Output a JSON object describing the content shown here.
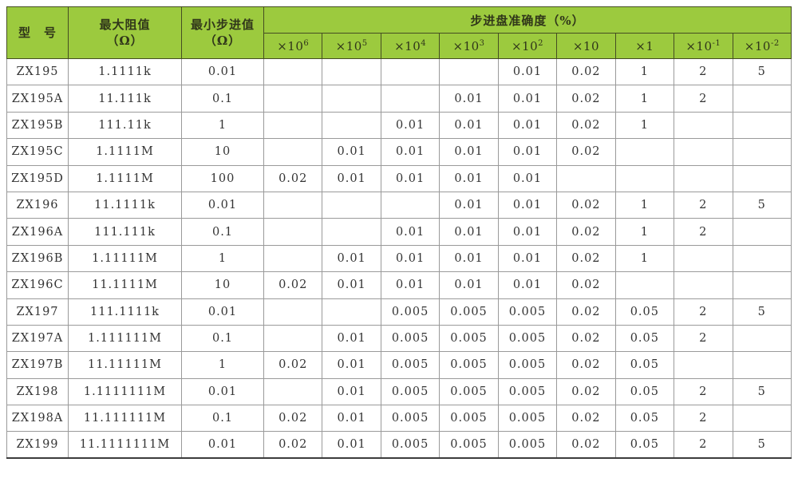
{
  "colors": {
    "header_bg": "#9cca3e",
    "header_border": "#454d22",
    "header_text": "#30361a",
    "grid_border": "#9a9a9a",
    "outer_border": "#3c3c3c",
    "cell_text": "#343434",
    "page_bg": "#ffffff"
  },
  "table": {
    "header": {
      "model": "型　号",
      "max_resistance": [
        "最大阻值",
        "（Ω）"
      ],
      "min_step": [
        "最小步进值",
        "（Ω）"
      ],
      "accuracy_group": "步进盘准确度（%）",
      "accuracy_columns": [
        {
          "base": "×10",
          "exp": "6"
        },
        {
          "base": "×10",
          "exp": "5"
        },
        {
          "base": "×10",
          "exp": "4"
        },
        {
          "base": "×10",
          "exp": "3"
        },
        {
          "base": "×10",
          "exp": "2"
        },
        {
          "base": "×10",
          "exp": ""
        },
        {
          "base": "×1",
          "exp": ""
        },
        {
          "base": "×10",
          "exp": "-1"
        },
        {
          "base": "×10",
          "exp": "-2"
        }
      ]
    },
    "rows": [
      {
        "model": "ZX195",
        "max": "1.1111k",
        "min_step": "0.01",
        "acc": [
          "",
          "",
          "",
          "",
          "0.01",
          "0.02",
          "1",
          "2",
          "5"
        ]
      },
      {
        "model": "ZX195A",
        "max": "11.111k",
        "min_step": "0.1",
        "acc": [
          "",
          "",
          "",
          "0.01",
          "0.01",
          "0.02",
          "1",
          "2",
          ""
        ]
      },
      {
        "model": "ZX195B",
        "max": "111.11k",
        "min_step": "1",
        "acc": [
          "",
          "",
          "0.01",
          "0.01",
          "0.01",
          "0.02",
          "1",
          "",
          ""
        ]
      },
      {
        "model": "ZX195C",
        "max": "1.1111M",
        "min_step": "10",
        "acc": [
          "",
          "0.01",
          "0.01",
          "0.01",
          "0.01",
          "0.02",
          "",
          "",
          ""
        ]
      },
      {
        "model": "ZX195D",
        "max": "1.1111M",
        "min_step": "100",
        "acc": [
          "0.02",
          "0.01",
          "0.01",
          "0.01",
          "0.01",
          "",
          "",
          "",
          ""
        ]
      },
      {
        "model": "ZX196",
        "max": "11.1111k",
        "min_step": "0.01",
        "acc": [
          "",
          "",
          "",
          "0.01",
          "0.01",
          "0.02",
          "1",
          "2",
          "5"
        ]
      },
      {
        "model": "ZX196A",
        "max": "111.111k",
        "min_step": "0.1",
        "acc": [
          "",
          "",
          "0.01",
          "0.01",
          "0.01",
          "0.02",
          "1",
          "2",
          ""
        ]
      },
      {
        "model": "ZX196B",
        "max": "1.11111M",
        "min_step": "1",
        "acc": [
          "",
          "0.01",
          "0.01",
          "0.01",
          "0.01",
          "0.02",
          "1",
          "",
          ""
        ]
      },
      {
        "model": "ZX196C",
        "max": "11.1111M",
        "min_step": "10",
        "acc": [
          "0.02",
          "0.01",
          "0.01",
          "0.01",
          "0.01",
          "0.02",
          "",
          "",
          ""
        ]
      },
      {
        "model": "ZX197",
        "max": "111.1111k",
        "min_step": "0.01",
        "acc": [
          "",
          "",
          "0.005",
          "0.005",
          "0.005",
          "0.02",
          "0.05",
          "2",
          "5"
        ]
      },
      {
        "model": "ZX197A",
        "max": "1.111111M",
        "min_step": "0.1",
        "acc": [
          "",
          "0.01",
          "0.005",
          "0.005",
          "0.005",
          "0.02",
          "0.05",
          "2",
          ""
        ]
      },
      {
        "model": "ZX197B",
        "max": "11.11111M",
        "min_step": "1",
        "acc": [
          "0.02",
          "0.01",
          "0.005",
          "0.005",
          "0.005",
          "0.02",
          "0.05",
          "",
          ""
        ]
      },
      {
        "model": "ZX198",
        "max": "1.1111111M",
        "min_step": "0.01",
        "acc": [
          "",
          "0.01",
          "0.005",
          "0.005",
          "0.005",
          "0.02",
          "0.05",
          "2",
          "5"
        ]
      },
      {
        "model": "ZX198A",
        "max": "11.111111M",
        "min_step": "0.1",
        "acc": [
          "0.02",
          "0.01",
          "0.005",
          "0.005",
          "0.005",
          "0.02",
          "0.05",
          "2",
          ""
        ]
      },
      {
        "model": "ZX199",
        "max": "11.1111111M",
        "min_step": "0.01",
        "acc": [
          "0.02",
          "0.01",
          "0.005",
          "0.005",
          "0.005",
          "0.02",
          "0.05",
          "2",
          "5"
        ]
      }
    ]
  }
}
